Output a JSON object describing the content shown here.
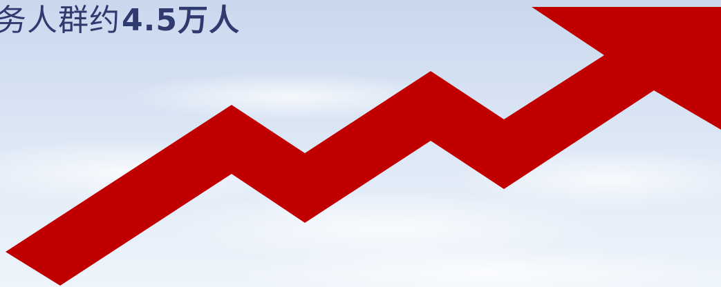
{
  "headline": {
    "prefix": "务人群约",
    "figure": "4.5万人"
  },
  "colors": {
    "arrow": "#c00000",
    "text": "#2f3a6e",
    "sky_top": "#c9d8ee",
    "sky_bottom": "#eef4fb"
  },
  "graphic": {
    "arrow_icon": "upward-trend-arrow-icon"
  }
}
